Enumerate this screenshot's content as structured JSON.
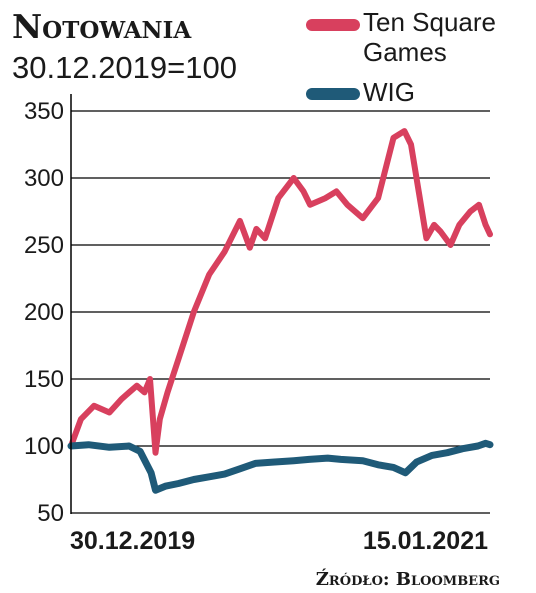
{
  "chart_data": {
    "type": "line",
    "title": "Notowania",
    "subtitle": "30.12.2019=100",
    "source": "Źródło: Bloomberg",
    "ylim": [
      50,
      350
    ],
    "yticks": [
      50,
      100,
      150,
      200,
      250,
      300,
      350
    ],
    "x_labels": [
      "30.12.2019",
      "15.01.2021"
    ],
    "x_range": [
      "2019-12-30",
      "2021-01-15"
    ],
    "grid": true,
    "legend_position": "top-right",
    "series": [
      {
        "name": "Ten Square Games",
        "color": "#d8405e",
        "x": [
          "2019-12-30",
          "2020-01-08",
          "2020-01-20",
          "2020-02-03",
          "2020-02-14",
          "2020-02-28",
          "2020-03-06",
          "2020-03-11",
          "2020-03-16",
          "2020-03-20",
          "2020-03-27",
          "2020-04-06",
          "2020-04-20",
          "2020-05-04",
          "2020-05-18",
          "2020-06-01",
          "2020-06-10",
          "2020-06-16",
          "2020-06-24",
          "2020-07-06",
          "2020-07-20",
          "2020-07-29",
          "2020-08-04",
          "2020-08-18",
          "2020-08-28",
          "2020-09-07",
          "2020-09-21",
          "2020-10-05",
          "2020-10-19",
          "2020-10-29",
          "2020-11-04",
          "2020-11-11",
          "2020-11-18",
          "2020-11-25",
          "2020-12-01",
          "2020-12-10",
          "2020-12-18",
          "2020-12-28",
          "2021-01-05",
          "2021-01-11",
          "2021-01-15"
        ],
        "values": [
          100,
          120,
          130,
          125,
          135,
          145,
          140,
          150,
          95,
          120,
          140,
          165,
          200,
          228,
          245,
          268,
          248,
          262,
          255,
          285,
          300,
          290,
          280,
          285,
          290,
          280,
          270,
          285,
          330,
          335,
          325,
          290,
          255,
          265,
          260,
          250,
          265,
          275,
          280,
          265,
          258
        ]
      },
      {
        "name": "WIG",
        "color": "#1f5a78",
        "x": [
          "2019-12-30",
          "2020-01-15",
          "2020-02-03",
          "2020-02-21",
          "2020-03-02",
          "2020-03-12",
          "2020-03-16",
          "2020-03-25",
          "2020-04-06",
          "2020-04-20",
          "2020-05-04",
          "2020-05-18",
          "2020-06-01",
          "2020-06-15",
          "2020-07-01",
          "2020-07-20",
          "2020-08-03",
          "2020-08-20",
          "2020-09-01",
          "2020-09-21",
          "2020-10-05",
          "2020-10-19",
          "2020-10-30",
          "2020-11-09",
          "2020-11-23",
          "2020-12-07",
          "2020-12-21",
          "2021-01-04",
          "2021-01-11",
          "2021-01-15"
        ],
        "values": [
          100,
          101,
          99,
          100,
          96,
          80,
          67,
          70,
          72,
          75,
          77,
          79,
          83,
          87,
          88,
          89,
          90,
          91,
          90,
          89,
          86,
          84,
          80,
          88,
          93,
          95,
          98,
          100,
          102,
          101
        ]
      }
    ]
  }
}
